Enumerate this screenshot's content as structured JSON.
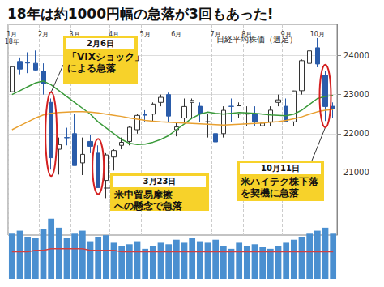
{
  "chart_data": {
    "type": "candlestick",
    "title": "18年は約1000円幅の急落が3回もあった!",
    "subtitle": "日経平均株価（週足）",
    "categories": [
      "1月\n18年",
      null,
      null,
      null,
      "2月",
      null,
      null,
      null,
      "3月",
      null,
      null,
      null,
      null,
      "4月",
      null,
      null,
      null,
      "5月",
      null,
      null,
      null,
      "6月",
      null,
      null,
      null,
      null,
      "7月",
      null,
      null,
      null,
      "8月",
      null,
      null,
      null,
      null,
      "9月",
      null,
      null,
      null,
      "10月",
      null,
      null
    ],
    "open": [
      23073,
      23849,
      23828,
      23800,
      23600,
      22800,
      21600,
      21900,
      22000,
      21250,
      21800,
      21500,
      20800,
      21400,
      21700,
      21800,
      22100,
      22500,
      22500,
      22800,
      23000,
      22100,
      22400,
      22800,
      22700,
      22300,
      22000,
      22000,
      22700,
      22500,
      22500,
      22500,
      22200,
      22300,
      22800,
      22700,
      22300,
      23100,
      23800,
      24200,
      23500,
      22700
    ],
    "high": [
      23730,
      23951,
      24084,
      24129,
      23800,
      22900,
      21900,
      22150,
      22500,
      21900,
      21968,
      21700,
      21500,
      21600,
      21900,
      22200,
      22500,
      22600,
      22800,
      23000,
      23050,
      22300,
      22900,
      22900,
      22800,
      22500,
      22200,
      22700,
      22900,
      22800,
      22700,
      22700,
      22400,
      22700,
      23000,
      22900,
      23100,
      23900,
      24300,
      24448,
      23600,
      22800
    ],
    "low": [
      23073,
      23520,
      23550,
      23600,
      23000,
      21078,
      20950,
      21700,
      21180,
      20937,
      21500,
      20617,
      20347,
      21056,
      21600,
      21700,
      22000,
      22300,
      22300,
      22700,
      22300,
      21931,
      22300,
      22400,
      22300,
      21900,
      21462,
      21900,
      22300,
      22400,
      22200,
      22200,
      21850,
      22200,
      22700,
      22300,
      22200,
      23000,
      23600,
      23700,
      22323,
      22400
    ],
    "close": [
      23714,
      23653,
      23808,
      23631,
      23274,
      21382,
      21720,
      21892,
      21182,
      21469,
      21676,
      20617,
      21454,
      21567,
      21778,
      22162,
      22467,
      22472,
      22758,
      22930,
      22450,
      22171,
      22694,
      22851,
      22516,
      22304,
      21788,
      22597,
      22697,
      22712,
      22525,
      22298,
      22270,
      22601,
      22865,
      22307,
      23094,
      23869,
      24120,
      23784,
      22694,
      22650
    ],
    "up_color": "#ffffff",
    "down_color": "#2a5caa",
    "series": [
      {
        "type": "line",
        "color": "#3a9a3a",
        "values": [
          23000,
          23100,
          23200,
          23300,
          23350,
          23250,
          23100,
          22950,
          22800,
          22650,
          22500,
          22300,
          22150,
          22000,
          21850,
          21750,
          21720,
          21730,
          21780,
          21850,
          21950,
          22100,
          22250,
          22400,
          22500,
          22550,
          22520,
          22500,
          22520,
          22540,
          22530,
          22520,
          22500,
          22480,
          22470,
          22460,
          22500,
          22600,
          22750,
          22900,
          22950,
          22980
        ]
      },
      {
        "type": "line",
        "color": "#e8a030",
        "values": [
          22100,
          22200,
          22300,
          22400,
          22480,
          22520,
          22540,
          22550,
          22560,
          22560,
          22550,
          22530,
          22500,
          22470,
          22440,
          22400,
          22370,
          22340,
          22320,
          22300,
          22290,
          22280,
          22270,
          22260,
          22250,
          22240,
          22230,
          22220,
          22230,
          22240,
          22250,
          22260,
          22270,
          22290,
          22310,
          22340,
          22380,
          22430,
          22500,
          22560,
          22600,
          22620
        ]
      },
      {
        "type": "bar",
        "axis": "y2",
        "color": "#4a8fd0",
        "values": [
          30,
          32,
          28,
          27,
          33,
          40,
          34,
          27,
          30,
          32,
          25,
          28,
          29,
          24,
          22,
          23,
          25,
          20,
          22,
          24,
          23,
          26,
          24,
          27,
          25,
          24,
          26,
          22,
          20,
          24,
          22,
          23,
          21,
          20,
          22,
          24,
          26,
          28,
          30,
          32,
          34,
          30
        ]
      },
      {
        "type": "line",
        "axis": "y2",
        "color": "#d04040",
        "values": [
          18,
          18,
          18,
          19,
          19,
          20,
          20,
          20,
          20,
          20,
          19,
          19,
          19,
          19,
          18,
          18,
          18,
          18,
          18,
          18,
          18,
          18,
          18,
          18,
          18,
          18,
          18,
          18,
          18,
          18,
          18,
          18,
          18,
          18,
          18,
          18,
          18,
          18,
          18,
          18,
          18,
          18
        ]
      }
    ],
    "ylim": [
      19400,
      24800
    ],
    "yticks": [
      21000,
      22000,
      23000,
      24000
    ],
    "y2lim": [
      0,
      42
    ],
    "grid": true,
    "tick_labels": "y",
    "annotations": [
      {
        "index": 5,
        "date": "2月6日",
        "lines": [
          "「VIXショック」",
          "による急落"
        ]
      },
      {
        "index": 11,
        "date": "3月23日",
        "lines": [
          "米中貿易摩擦",
          "への懸念で急落"
        ]
      },
      {
        "index": 40,
        "date": "10月11日",
        "lines": [
          "米ハイテク株下落",
          "を契機に急落"
        ]
      }
    ]
  }
}
